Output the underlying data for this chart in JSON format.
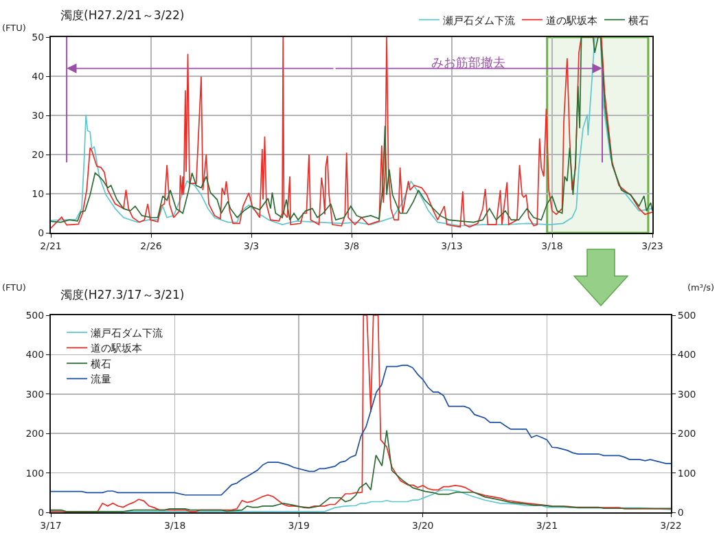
{
  "chart_data": [
    {
      "type": "line",
      "title": "濁度(H27.2/21～3/22)",
      "ylabel": "(FTU)",
      "xlim": [
        "--02-21",
        "--03-23"
      ],
      "xticks": [
        {
          "value": "--02-21",
          "label": "2/21"
        },
        {
          "value": "--02-26",
          "label": "2/26"
        },
        {
          "value": "--03-03",
          "label": "3/3"
        },
        {
          "value": "--03-08",
          "label": "3/8"
        },
        {
          "value": "--03-13",
          "label": "3/13"
        },
        {
          "value": "--03-18",
          "label": "3/18"
        },
        {
          "value": "--03-23",
          "label": "3/23"
        }
      ],
      "ylim": [
        0,
        50
      ],
      "yticks": [
        0,
        10,
        20,
        30,
        40,
        50
      ],
      "grid": true,
      "legend": "top right",
      "annotations": [
        "みお筋部撤去"
      ],
      "ref_lines": [
        {
          "axis": "x",
          "value": "--02-21T19:00",
          "color": "#9b4fa8"
        },
        {
          "axis": "x",
          "value": "--03-20T12:00",
          "color": "#9b4fa8"
        }
      ],
      "bands": [
        {
          "axis": "x",
          "from": "--03-17T18:00",
          "to": "--03-22T19:00",
          "color": "#6ab344"
        }
      ],
      "series": [
        {
          "name": "瀬戸石ダム下流",
          "color": "#5ec6cf",
          "x": [
            "--02-21T00:00",
            "--02-22T06:00",
            "--02-22T13:00",
            "--02-22T16:00",
            "--02-22T18:00",
            "--02-22T20:00",
            "--02-22T23:00",
            "--02-23T01:00",
            "--02-23T04:00",
            "--02-23T10:00",
            "--02-23T18:00",
            "--02-24T05:00",
            "--02-24T15:00",
            "--02-25T08:00",
            "--02-25T21:00",
            "--02-26T08:00",
            "--02-26T14:00",
            "--02-26T19:00",
            "--02-27T03:00",
            "--02-27T11:00",
            "--02-27T19:00",
            "--02-28T04:00",
            "--02-28T12:00",
            "--02-28T20:00",
            "--03-01T04:00",
            "--03-01T20:00",
            "--03-02T07:00",
            "--03-02T12:00",
            "--03-02T21:00",
            "--03-03T08:00",
            "--03-03T21:00",
            "--03-04T13:00",
            "--03-05T06:00",
            "--03-06T09:00",
            "--03-07T12:00",
            "--03-08T06:00",
            "--03-08T23:00",
            "--03-09T12:00",
            "--03-10T01:00",
            "--03-10T12:00",
            "--03-10T23:00",
            "--03-11T10:00",
            "--03-11T20:00",
            "--03-12T07:00",
            "--03-13T10:00",
            "--03-14T13:00",
            "--03-15T16:00",
            "--03-16T18:00",
            "--03-17T21:00",
            "--03-18T13:00",
            "--03-19T00:00",
            "--03-19T05:00",
            "--03-19T08:00",
            "--03-19T13:00",
            "--03-19T18:00",
            "--03-19T19:00",
            "--03-20T00:00",
            "--03-20T03:00",
            "--03-20T10:00",
            "--03-20T13:00",
            "--03-20T22:00",
            "--03-21T08:00",
            "--03-21T19:00",
            "--03-22T08:00",
            "--03-23T00:00"
          ],
          "values": [
            3.2,
            3.4,
            6.2,
            19.1,
            30.2,
            26.1,
            25.8,
            21.4,
            22,
            14.4,
            9.7,
            6.2,
            3.9,
            2.7,
            3.3,
            3.3,
            6.8,
            3.9,
            4.4,
            8.5,
            13.2,
            12.1,
            9.7,
            6.2,
            3.9,
            2.7,
            2.7,
            5.6,
            7.1,
            5,
            3.3,
            2.1,
            3,
            2.7,
            2.4,
            2.7,
            2.1,
            3,
            3.9,
            7.4,
            13.2,
            9.7,
            5.6,
            2.7,
            1.8,
            2.1,
            2.1,
            2.4,
            2.1,
            2.4,
            3.9,
            6.2,
            16.7,
            26.7,
            30.2,
            24.9,
            40.2,
            50,
            50,
            33.1,
            19.1,
            12.1,
            9.1,
            5.6,
            6.2
          ]
        },
        {
          "name": "道の駅坂本",
          "color": "#ee2a24",
          "x": [
            "--02-21T00:00",
            "--02-21T13:00",
            "--02-21T19:00",
            "--02-22T09:00",
            "--02-22T14:00",
            "--02-22T19:00",
            "--02-22T23:00",
            "--02-23T01:00",
            "--02-23T07:00",
            "--02-23T12:00",
            "--02-23T16:00",
            "--02-23T20:00",
            "--02-24T05:00",
            "--02-24T15:00",
            "--02-24T18:00",
            "--02-24T21:00",
            "--02-25T02:00",
            "--02-25T10:00",
            "--02-25T16:00",
            "--02-25T20:00",
            "--02-25T23:00",
            "--02-26T08:00",
            "--02-26T12:00",
            "--02-26T16:00",
            "--02-26T19:00",
            "--02-26T22:00",
            "--02-27T03:00",
            "--02-27T10:00",
            "--02-27T11:00",
            "--02-27T13:00",
            "--02-27T14:00",
            "--02-27T15:00",
            "--02-27T17:00",
            "--02-27T18:00",
            "--02-27T20:00",
            "--02-27T22:00",
            "--02-28T06:00",
            "--02-28T12:00",
            "--02-28T14:00",
            "--02-28T18:00",
            "--02-28T21:00",
            "--03-01T04:00",
            "--03-01T11:00",
            "--03-01T13:00",
            "--03-01T16:00",
            "--03-01T18:00",
            "--03-01T22:00",
            "--03-02T02:00",
            "--03-02T10:00",
            "--03-02T14:00",
            "--03-02T21:00",
            "--03-03T01:00",
            "--03-03T10:00",
            "--03-03T13:00",
            "--03-03T14:00",
            "--03-03T16:00",
            "--03-03T18:00",
            "--03-03T23:00",
            "--03-04T09:00",
            "--03-04T13:00",
            "--03-04T14:00",
            "--03-04T15:00",
            "--03-04T19:00",
            "--03-04T22:00",
            "--03-04T23:00",
            "--03-05T11:00",
            "--03-05T14:00",
            "--03-05T18:00",
            "--03-05T21:00",
            "--03-05T23:00",
            "--03-06T09:00",
            "--03-06T12:00",
            "--03-06T14:00",
            "--03-06T16:00",
            "--03-06T17:00",
            "--03-06T19:00",
            "--03-06T21:00",
            "--03-07T01:00",
            "--03-07T12:00",
            "--03-07T16:00",
            "--03-07T18:00",
            "--03-07T20:00",
            "--03-08T04:00",
            "--03-08T12:00",
            "--03-08T20:00",
            "--03-09T09:00",
            "--03-09T12:00",
            "--03-09T14:00",
            "--03-09T16:00",
            "--03-09T18:00",
            "--03-09T20:00",
            "--03-09T23:00",
            "--03-10T03:00",
            "--03-10T08:00",
            "--03-10T10:00",
            "--03-10T13:00",
            "--03-10T20:00",
            "--03-10T22:00",
            "--03-11T03:00",
            "--03-11T12:00",
            "--03-11T18:00",
            "--03-12T02:00",
            "--03-12T07:00",
            "--03-12T15:00",
            "--03-12T18:00",
            "--03-13T10:00",
            "--03-13T13:00",
            "--03-13T15:00",
            "--03-13T21:00",
            "--03-14T07:00",
            "--03-14T13:00",
            "--03-14T16:00",
            "--03-14T19:00",
            "--03-15T05:00",
            "--03-15T10:00",
            "--03-15T12:00",
            "--03-15T18:00",
            "--03-15T20:00",
            "--03-16T06:00",
            "--03-16T09:00",
            "--03-16T12:00",
            "--03-16T14:00",
            "--03-16T17:00",
            "--03-16T20:00",
            "--03-17T02:00",
            "--03-17T06:00",
            "--03-17T09:00",
            "--03-17T11:00",
            "--03-17T14:00",
            "--03-17T17:00",
            "--03-17T20:00",
            "--03-18T00:00",
            "--03-18T05:00",
            "--03-18T12:00",
            "--03-18T14:00",
            "--03-18T18:00",
            "--03-18T21:00",
            "--03-19T00:00",
            "--03-19T04:00",
            "--03-19T08:00",
            "--03-19T11:00",
            "--03-20T11:00",
            "--03-20T15:00",
            "--03-21T00:00",
            "--03-21T08:00",
            "--03-21T16:00",
            "--03-21T22:00",
            "--03-22T08:00",
            "--03-22T15:00",
            "--03-23T00:00"
          ],
          "values": [
            1.2,
            4,
            2,
            2.2,
            5,
            11,
            21.7,
            21,
            17,
            16.7,
            15.5,
            11,
            7.4,
            6.2,
            11,
            6.2,
            3.9,
            2.7,
            3.3,
            7.4,
            3.3,
            2.8,
            6.8,
            7.4,
            17.3,
            7.4,
            3.9,
            5.6,
            14.7,
            9.7,
            14.4,
            9.7,
            36.4,
            15.6,
            45.7,
            12.6,
            12.6,
            39.9,
            10.9,
            20,
            7.4,
            4.4,
            3.6,
            11.5,
            9.7,
            13.2,
            5.6,
            2.4,
            2.4,
            6.8,
            10.2,
            6.8,
            3.9,
            21.4,
            8.5,
            24.6,
            7.4,
            3.3,
            3,
            5,
            50,
            5,
            3.9,
            14.4,
            2.1,
            2.4,
            5,
            5,
            20,
            3.3,
            2.1,
            14.1,
            10.9,
            4.7,
            16.7,
            19.7,
            9.7,
            2.1,
            1.8,
            4.4,
            20.5,
            3.9,
            2.1,
            3.9,
            2.1,
            3,
            22.3,
            7.7,
            15.6,
            50,
            16.7,
            6.2,
            3.3,
            3.3,
            16.7,
            5,
            13.2,
            10.9,
            12.1,
            11.5,
            9.7,
            5.6,
            3.3,
            6.8,
            2.1,
            1.5,
            10.6,
            2.1,
            1.5,
            2.4,
            6.2,
            11.2,
            2.1,
            2.1,
            10.9,
            2.1,
            12.9,
            2.1,
            3.3,
            17.3,
            9.7,
            9.1,
            9.7,
            3.9,
            1.8,
            2.1,
            24.1,
            16.7,
            14.4,
            31.7,
            10.9,
            5.6,
            4.7,
            6.2,
            28.5,
            44.6,
            23.8,
            10.9,
            16.7,
            46,
            50,
            50,
            35.5,
            17.9,
            12.1,
            10.6,
            9.7,
            6.2,
            4.7,
            5.3
          ]
        },
        {
          "name": "横石",
          "color": "#2b6b32",
          "x": [
            "--02-21T00:00",
            "--02-21T12:00",
            "--02-21T22:00",
            "--02-22T08:00",
            "--02-22T12:00",
            "--02-22T17:00",
            "--02-22T23:00",
            "--02-23T05:00",
            "--02-23T10:00",
            "--02-23T15:00",
            "--02-23T20:00",
            "--02-24T00:00",
            "--02-24T07:00",
            "--02-24T15:00",
            "--02-24T23:00",
            "--02-25T05:00",
            "--02-25T13:00",
            "--02-26T00:00",
            "--02-26T08:00",
            "--02-26T14:00",
            "--02-26T19:00",
            "--02-26T23:00",
            "--02-27T06:00",
            "--02-27T14:00",
            "--02-27T21:00",
            "--02-28T01:00",
            "--02-28T06:00",
            "--02-28T12:00",
            "--02-28T18:00",
            "--02-28T23:00",
            "--03-01T07:00",
            "--03-01T12:00",
            "--03-01T20:00",
            "--03-01T23:00",
            "--03-02T07:00",
            "--03-02T15:00",
            "--03-02T23:00",
            "--03-03T10:00",
            "--03-03T20:00",
            "--03-03T23:00",
            "--03-04T01:00",
            "--03-04T05:00",
            "--03-04T13:00",
            "--03-04T18:00",
            "--03-04T22:00",
            "--03-05T03:00",
            "--03-05T08:00",
            "--03-05T17:00",
            "--03-06T01:00",
            "--03-06T07:00",
            "--03-06T14:00",
            "--03-06T23:00",
            "--03-07T05:00",
            "--03-07T15:00",
            "--03-07T23:00",
            "--03-08T06:00",
            "--03-08T12:00",
            "--03-08T23:00",
            "--03-09T09:00",
            "--03-09T13:00",
            "--03-09T16:00",
            "--03-09T18:00",
            "--03-09T21:00",
            "--03-10T01:00",
            "--03-10T10:00",
            "--03-10T18:00",
            "--03-11T02:00",
            "--03-11T08:00",
            "--03-11T15:00",
            "--03-11T23:00",
            "--03-12T10:00",
            "--03-12T20:00",
            "--03-13T10:00",
            "--03-14T02:00",
            "--03-14T13:00",
            "--03-14T21:00",
            "--03-15T05:00",
            "--03-15T16:00",
            "--03-15T23:00",
            "--03-16T08:00",
            "--03-16T18:00",
            "--03-17T02:00",
            "--03-17T11:00",
            "--03-17T18:00",
            "--03-18T00:00",
            "--03-18T06:00",
            "--03-18T12:00",
            "--03-18T15:00",
            "--03-18T18:00",
            "--03-18T21:00",
            "--03-19T01:00",
            "--03-19T04:00",
            "--03-19T07:00",
            "--03-19T09:00",
            "--03-19T11:00",
            "--03-20T01:00",
            "--03-20T03:00",
            "--03-20T07:00",
            "--03-20T10:00",
            "--03-20T15:00",
            "--03-21T00:00",
            "--03-21T11:00",
            "--03-21T22:00",
            "--03-22T08:00",
            "--03-22T14:00",
            "--03-22T17:00",
            "--03-22T22:00",
            "--03-23T00:00"
          ],
          "values": [
            2.9,
            2.7,
            3.3,
            3,
            5.3,
            5.6,
            9.7,
            15.3,
            14.4,
            13.2,
            11.5,
            12.1,
            8.5,
            6.2,
            5.6,
            6.8,
            4.4,
            3.9,
            3.9,
            9.4,
            8.3,
            10.9,
            6.2,
            5,
            10.9,
            15.3,
            12.1,
            11.5,
            14.4,
            10.3,
            8.5,
            5,
            8,
            6.2,
            3.9,
            5.6,
            6.8,
            5.9,
            8.8,
            6.2,
            10.3,
            5,
            3.9,
            8.5,
            3.3,
            5,
            3.3,
            5.6,
            6.2,
            3.9,
            5,
            7.4,
            3.3,
            3.9,
            6.8,
            4.4,
            3.9,
            4.4,
            3.6,
            10.9,
            27.3,
            9.7,
            16.2,
            9.7,
            5,
            5,
            8,
            10.9,
            8.5,
            6.8,
            4.4,
            3.3,
            3,
            2.7,
            3.3,
            6.2,
            3.3,
            5.6,
            3.3,
            3.3,
            6.2,
            3.9,
            3.3,
            7.4,
            9.4,
            5.6,
            5,
            14.4,
            13.2,
            21.7,
            9.7,
            17.9,
            37.5,
            26.7,
            50,
            50,
            46,
            50,
            50,
            32.6,
            17.3,
            10.9,
            9.7,
            6.8,
            9.4,
            5.6,
            7.7,
            5.6
          ]
        }
      ]
    },
    {
      "type": "line",
      "title": "濁度(H27.3/17～3/21)",
      "ylabel": "(FTU)",
      "y2label": "(m³/s)",
      "xlim": [
        "--03-17",
        "--03-22"
      ],
      "xticks": [
        {
          "value": "--03-17",
          "label": "3/17"
        },
        {
          "value": "--03-18",
          "label": "3/18"
        },
        {
          "value": "--03-19",
          "label": "3/19"
        },
        {
          "value": "--03-20",
          "label": "3/20"
        },
        {
          "value": "--03-21",
          "label": "3/21"
        },
        {
          "value": "--03-22",
          "label": "3/22"
        }
      ],
      "ylim": [
        0,
        500
      ],
      "yticks": [
        0,
        100,
        200,
        300,
        400,
        500
      ],
      "y2lim": [
        0,
        500
      ],
      "y2ticks": [
        0,
        100,
        200,
        300,
        400,
        500
      ],
      "grid": true,
      "legend": "top left",
      "series": [
        {
          "name": "瀬戸石ダム下流",
          "color": "#5ec6cf",
          "x": [
            "--03-17T00:00",
            "--03-19T05:00",
            "--03-19T07:00",
            "--03-19T09:00",
            "--03-19T11:00",
            "--03-19T12:00",
            "--03-19T13:00",
            "--03-19T14:00",
            "--03-19T16:00",
            "--03-19T17:00",
            "--03-19T18:00",
            "--03-19T21:00",
            "--03-19T22:00",
            "--03-19T23:00",
            "--03-20T00:00",
            "--03-20T02:00",
            "--03-20T03:00",
            "--03-20T04:00",
            "--03-20T05:00",
            "--03-20T07:00",
            "--03-20T09:00",
            "--03-20T12:00",
            "--03-20T15:00",
            "--03-20T18:00",
            "--03-20T20:00",
            "--03-20T23:00",
            "--03-21T00:00",
            "--03-21T05:00",
            "--03-21T06:00",
            "--03-21T12:00",
            "--03-21T18:00",
            "--03-22T00:00"
          ],
          "values": [
            2,
            2,
            12,
            16,
            17,
            23,
            23,
            27,
            27,
            30,
            27,
            27,
            31,
            31,
            36,
            46,
            54,
            57,
            57,
            53,
            43,
            31,
            23,
            21,
            17,
            17,
            13,
            13,
            11,
            11,
            11,
            7
          ]
        },
        {
          "name": "道の駅坂本",
          "color": "#ee2a24",
          "x": [
            "--03-17T00:00",
            "--03-17T02:00",
            "--03-17T03:00",
            "--03-17T09:00",
            "--03-17T10:00",
            "--03-17T11:00",
            "--03-17T12:00",
            "--03-17T13:00",
            "--03-17T14:00",
            "--03-17T15:00",
            "--03-17T16:00",
            "--03-17T17:00",
            "--03-17T18:00",
            "--03-17T19:00",
            "--03-17T20:00",
            "--03-17T21:00",
            "--03-18T01:00",
            "--03-18T02:00",
            "--03-18T03:00",
            "--03-18T04:00",
            "--03-18T05:00",
            "--03-18T11:00",
            "--03-18T12:00",
            "--03-18T13:00",
            "--03-18T14:00",
            "--03-18T15:00",
            "--03-18T17:00",
            "--03-18T18:00",
            "--03-18T19:00",
            "--03-18T21:00",
            "--03-18T22:00",
            "--03-18T23:00",
            "--03-19T02:00",
            "--03-19T03:00",
            "--03-19T05:00",
            "--03-19T06:00",
            "--03-19T07:00",
            "--03-19T08:00",
            "--03-19T09:00",
            "--03-19T10:00",
            "--03-19T11:00",
            "--03-19T11:45",
            "--03-19T12:15",
            "--03-19T12:30",
            "--03-19T13:10",
            "--03-19T13:55",
            "--03-19T14:25",
            "--03-19T15:20",
            "--03-19T15:50",
            "--03-19T17:00",
            "--03-19T18:00",
            "--03-19T19:40",
            "--03-19T21:10",
            "--03-19T22:05",
            "--03-19T23:00",
            "--03-20T00:00",
            "--03-20T01:00",
            "--03-20T02:00",
            "--03-20T03:00",
            "--03-20T04:00",
            "--03-20T05:00",
            "--03-20T06:15",
            "--03-20T07:25",
            "--03-20T08:10",
            "--03-20T09:50",
            "--03-20T12:00",
            "--03-20T15:00",
            "--03-20T16:20",
            "--03-20T19:00",
            "--03-20T23:00",
            "--03-21T01:00",
            "--03-21T04:00",
            "--03-21T06:00",
            "--03-21T14:00",
            "--03-21T15:00",
            "--03-22T00:00"
          ],
          "values": [
            3,
            3,
            1,
            1,
            23,
            16,
            23,
            16,
            13,
            20,
            25,
            33,
            29,
            16,
            12,
            6,
            6,
            6,
            2,
            2,
            6,
            6,
            9,
            30,
            25,
            28,
            40,
            44,
            40,
            20,
            16,
            16,
            12,
            16,
            16,
            20,
            20,
            33,
            47,
            47,
            50,
            50,
            51,
            500,
            500,
            254,
            500,
            500,
            184,
            166,
            115,
            80,
            69,
            69,
            63,
            68,
            60,
            57,
            57,
            65,
            65,
            68,
            66,
            63,
            51,
            43,
            36,
            30,
            25,
            19,
            16,
            15,
            12,
            12,
            9,
            9
          ]
        },
        {
          "name": "横石",
          "color": "#2b6b32",
          "x": [
            "--03-17T00:00",
            "--03-17T02:00",
            "--03-17T03:00",
            "--03-17T14:00",
            "--03-17T16:00",
            "--03-17T22:00",
            "--03-17T23:00",
            "--03-18T02:00",
            "--03-18T03:00",
            "--03-18T09:00",
            "--03-18T10:00",
            "--03-18T13:00",
            "--03-18T14:00",
            "--03-18T15:00",
            "--03-18T16:00",
            "--03-18T17:00",
            "--03-18T19:00",
            "--03-18T21:00",
            "--03-18T23:00",
            "--03-19T01:00",
            "--03-19T02:00",
            "--03-19T04:00",
            "--03-19T06:00",
            "--03-19T08:00",
            "--03-19T09:00",
            "--03-19T10:00",
            "--03-19T11:00",
            "--03-19T11:45",
            "--03-19T13:00",
            "--03-19T13:55",
            "--03-19T14:55",
            "--03-19T16:05",
            "--03-19T17:00",
            "--03-19T18:00",
            "--03-19T20:00",
            "--03-19T22:05",
            "--03-20T00:30",
            "--03-20T02:00",
            "--03-20T03:00",
            "--03-20T05:00",
            "--03-20T06:30",
            "--03-20T09:50",
            "--03-20T12:00",
            "--03-20T14:25",
            "--03-20T17:00",
            "--03-20T20:00",
            "--03-20T21:35",
            "--03-20T23:15",
            "--03-21T01:00",
            "--03-21T03:20",
            "--03-21T04:30",
            "--03-21T10:00",
            "--03-21T11:00",
            "--03-22T00:00"
          ],
          "values": [
            6,
            6,
            2,
            2,
            6,
            6,
            9,
            9,
            6,
            6,
            3,
            6,
            16,
            13,
            13,
            16,
            16,
            23,
            18,
            12,
            11,
            16,
            37,
            37,
            27,
            31,
            43,
            62,
            74,
            57,
            145,
            118,
            208,
            106,
            82,
            62,
            53,
            50,
            46,
            46,
            51,
            51,
            39,
            33,
            25,
            21,
            18,
            18,
            15,
            15,
            13,
            13,
            10,
            10
          ]
        },
        {
          "name": "流量",
          "color": "#1e4fa6",
          "axis": "y2",
          "x": [
            "--03-17T00:00",
            "--03-17T06:00",
            "--03-17T07:00",
            "--03-17T10:00",
            "--03-17T11:00",
            "--03-17T12:00",
            "--03-17T13:00",
            "--03-18T00:00",
            "--03-18T02:00",
            "--03-18T09:00",
            "--03-18T11:00",
            "--03-18T12:00",
            "--03-18T13:00",
            "--03-18T14:00",
            "--03-18T16:00",
            "--03-18T17:00",
            "--03-18T18:00",
            "--03-18T20:00",
            "--03-18T22:00",
            "--03-18T23:00",
            "--03-19T02:00",
            "--03-19T03:00",
            "--03-19T04:00",
            "--03-19T05:00",
            "--03-19T07:00",
            "--03-19T08:00",
            "--03-19T09:00",
            "--03-19T10:00",
            "--03-19T11:00",
            "--03-19T12:00",
            "--03-19T13:00",
            "--03-19T15:00",
            "--03-19T16:00",
            "--03-19T17:00",
            "--03-19T19:00",
            "--03-19T20:00",
            "--03-19T21:00",
            "--03-19T22:00",
            "--03-19T23:00",
            "--03-20T00:00",
            "--03-20T01:00",
            "--03-20T02:00",
            "--03-20T03:00",
            "--03-20T04:00",
            "--03-20T05:00",
            "--03-20T08:00",
            "--03-20T09:00",
            "--03-20T10:00",
            "--03-20T12:00",
            "--03-20T13:00",
            "--03-20T15:00",
            "--03-20T16:00",
            "--03-20T17:00",
            "--03-20T20:00",
            "--03-20T21:00",
            "--03-20T22:00",
            "--03-20T23:00",
            "--03-21T00:00",
            "--03-21T01:00",
            "--03-21T02:00",
            "--03-21T04:00",
            "--03-21T05:00",
            "--03-21T06:00",
            "--03-21T10:00",
            "--03-21T11:00",
            "--03-21T14:00",
            "--03-21T15:00",
            "--03-21T16:00",
            "--03-21T18:00",
            "--03-21T19:00",
            "--03-21T20:00",
            "--03-21T23:00",
            "--03-22T00:00"
          ],
          "values": [
            53,
            53,
            50,
            50,
            54,
            54,
            50,
            50,
            44,
            44,
            70,
            74,
            84,
            91,
            107,
            120,
            127,
            127,
            120,
            114,
            104,
            104,
            111,
            111,
            117,
            127,
            130,
            140,
            145,
            193,
            217,
            305,
            323,
            370,
            370,
            373,
            373,
            367,
            350,
            337,
            317,
            305,
            305,
            296,
            269,
            269,
            264,
            248,
            239,
            228,
            228,
            219,
            211,
            211,
            190,
            195,
            190,
            184,
            165,
            164,
            157,
            151,
            148,
            148,
            144,
            144,
            140,
            134,
            134,
            131,
            134,
            124,
            124
          ]
        }
      ]
    }
  ]
}
